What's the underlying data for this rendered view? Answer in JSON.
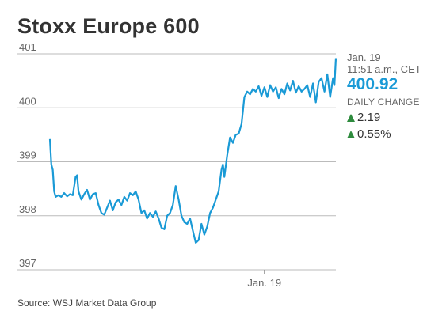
{
  "title": "Stoxx Europe 600",
  "info": {
    "date": "Jan. 19",
    "time": "11:51 a.m., CET",
    "price": "400.92",
    "daily_change_label": "DAILY CHANGE",
    "change_points": "2.19",
    "change_percent": "0.55%"
  },
  "source": "Source: WSJ Market Data Group",
  "colors": {
    "line": "#1a9ad6",
    "up": "#2e8b3e",
    "grid": "#bbbbbb"
  },
  "chart_data": {
    "type": "line",
    "title": "Stoxx Europe 600",
    "xlabel": "",
    "ylabel": "",
    "ylim": [
      396.9,
      401.0
    ],
    "yticks": [
      397,
      398,
      399,
      400,
      401
    ],
    "ytick_labels": [
      "397",
      "398",
      "399",
      "400",
      "401"
    ],
    "xtick_labels": [
      "Jan. 19"
    ],
    "xtick_positions": [
      0.75
    ],
    "grid": true,
    "series": [
      {
        "x": [
          0.0,
          0.005,
          0.01,
          0.015,
          0.02,
          0.03,
          0.04,
          0.05,
          0.06,
          0.07,
          0.08,
          0.09,
          0.095,
          0.1,
          0.11,
          0.12,
          0.13,
          0.14,
          0.15,
          0.16,
          0.17,
          0.18,
          0.19,
          0.2,
          0.21,
          0.22,
          0.23,
          0.24,
          0.25,
          0.26,
          0.27,
          0.28,
          0.29,
          0.3,
          0.31,
          0.32,
          0.33,
          0.34,
          0.35,
          0.36,
          0.37,
          0.38,
          0.39,
          0.4,
          0.41,
          0.42,
          0.43,
          0.44,
          0.45,
          0.46,
          0.47,
          0.48,
          0.49,
          0.5,
          0.51,
          0.52,
          0.53,
          0.54,
          0.55,
          0.56,
          0.57,
          0.58,
          0.59,
          0.6,
          0.605,
          0.61,
          0.62,
          0.63,
          0.64,
          0.65,
          0.66,
          0.67,
          0.68,
          0.69,
          0.7,
          0.71,
          0.72,
          0.73,
          0.74,
          0.75,
          0.76,
          0.77,
          0.78,
          0.79,
          0.8,
          0.81,
          0.82,
          0.83,
          0.84,
          0.85,
          0.86,
          0.87,
          0.88,
          0.89,
          0.9,
          0.91,
          0.92,
          0.93,
          0.94,
          0.95,
          0.96,
          0.97,
          0.98,
          0.99,
          0.995,
          1.0
        ],
        "y": [
          399.42,
          398.95,
          398.85,
          398.45,
          398.35,
          398.38,
          398.35,
          398.42,
          398.36,
          398.4,
          398.38,
          398.72,
          398.75,
          398.45,
          398.3,
          398.4,
          398.48,
          398.3,
          398.4,
          398.42,
          398.2,
          398.05,
          398.02,
          398.15,
          398.28,
          398.1,
          398.25,
          398.3,
          398.2,
          398.35,
          398.28,
          398.42,
          398.38,
          398.45,
          398.3,
          398.05,
          398.1,
          397.95,
          398.05,
          397.98,
          398.08,
          397.95,
          397.78,
          397.75,
          398.0,
          398.05,
          398.2,
          398.55,
          398.3,
          398.0,
          397.88,
          397.85,
          397.95,
          397.72,
          397.5,
          397.55,
          397.85,
          397.65,
          397.8,
          398.05,
          398.15,
          398.3,
          398.45,
          398.85,
          398.95,
          398.72,
          399.12,
          399.45,
          399.35,
          399.5,
          399.52,
          399.7,
          400.2,
          400.3,
          400.25,
          400.35,
          400.3,
          400.4,
          400.22,
          400.38,
          400.2,
          400.42,
          400.3,
          400.38,
          400.18,
          400.35,
          400.25,
          400.45,
          400.32,
          400.5,
          400.28,
          400.4,
          400.3,
          400.35,
          400.42,
          400.2,
          400.45,
          400.1,
          400.48,
          400.55,
          400.3,
          400.62,
          400.2,
          400.55,
          400.42,
          400.92
        ]
      }
    ]
  }
}
